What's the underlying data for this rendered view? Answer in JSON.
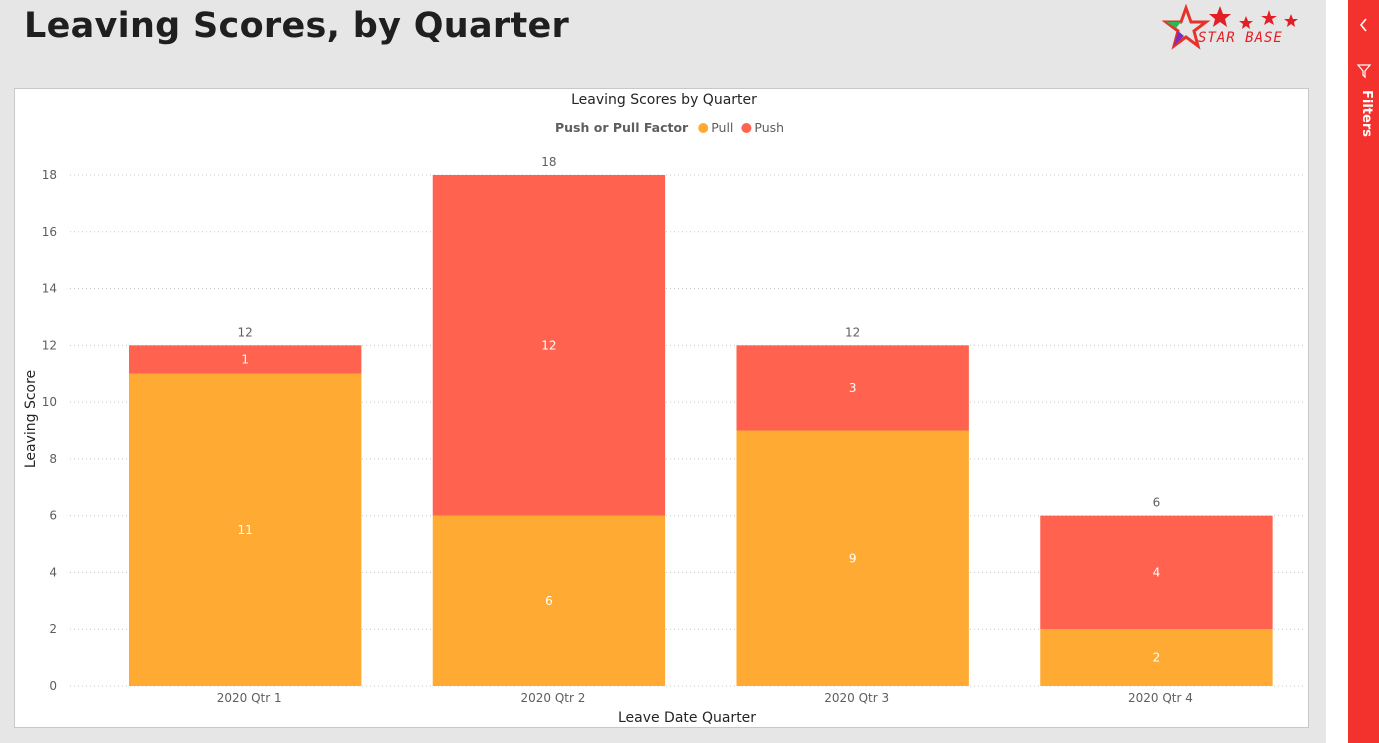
{
  "page": {
    "title": "Leaving Scores, by Quarter"
  },
  "logo": {
    "text": "STAR BASE"
  },
  "filters_pane": {
    "label": "Filters"
  },
  "colors": {
    "pull": "#FFAA33",
    "push": "#FF624E",
    "filters_bar": "#F3312D"
  },
  "chart_data": {
    "type": "bar",
    "stacked": true,
    "title": "Leaving Scores by Quarter",
    "legend_title": "Push or Pull Factor",
    "legend_position": "top-center",
    "categories": [
      "2020 Qtr 1",
      "2020 Qtr 2",
      "2020 Qtr 3",
      "2020 Qtr 4"
    ],
    "series": [
      {
        "name": "Pull",
        "values": [
          11,
          6,
          9,
          2
        ],
        "color": "#FFAA33"
      },
      {
        "name": "Push",
        "values": [
          1,
          12,
          3,
          4
        ],
        "color": "#FF624E"
      }
    ],
    "totals": [
      12,
      18,
      12,
      6
    ],
    "xlabel": "Leave Date Quarter",
    "ylabel": "Leaving Score",
    "ylim": [
      0,
      18
    ],
    "yticks": [
      0,
      2,
      4,
      6,
      8,
      10,
      12,
      14,
      16,
      18
    ],
    "grid": true
  }
}
